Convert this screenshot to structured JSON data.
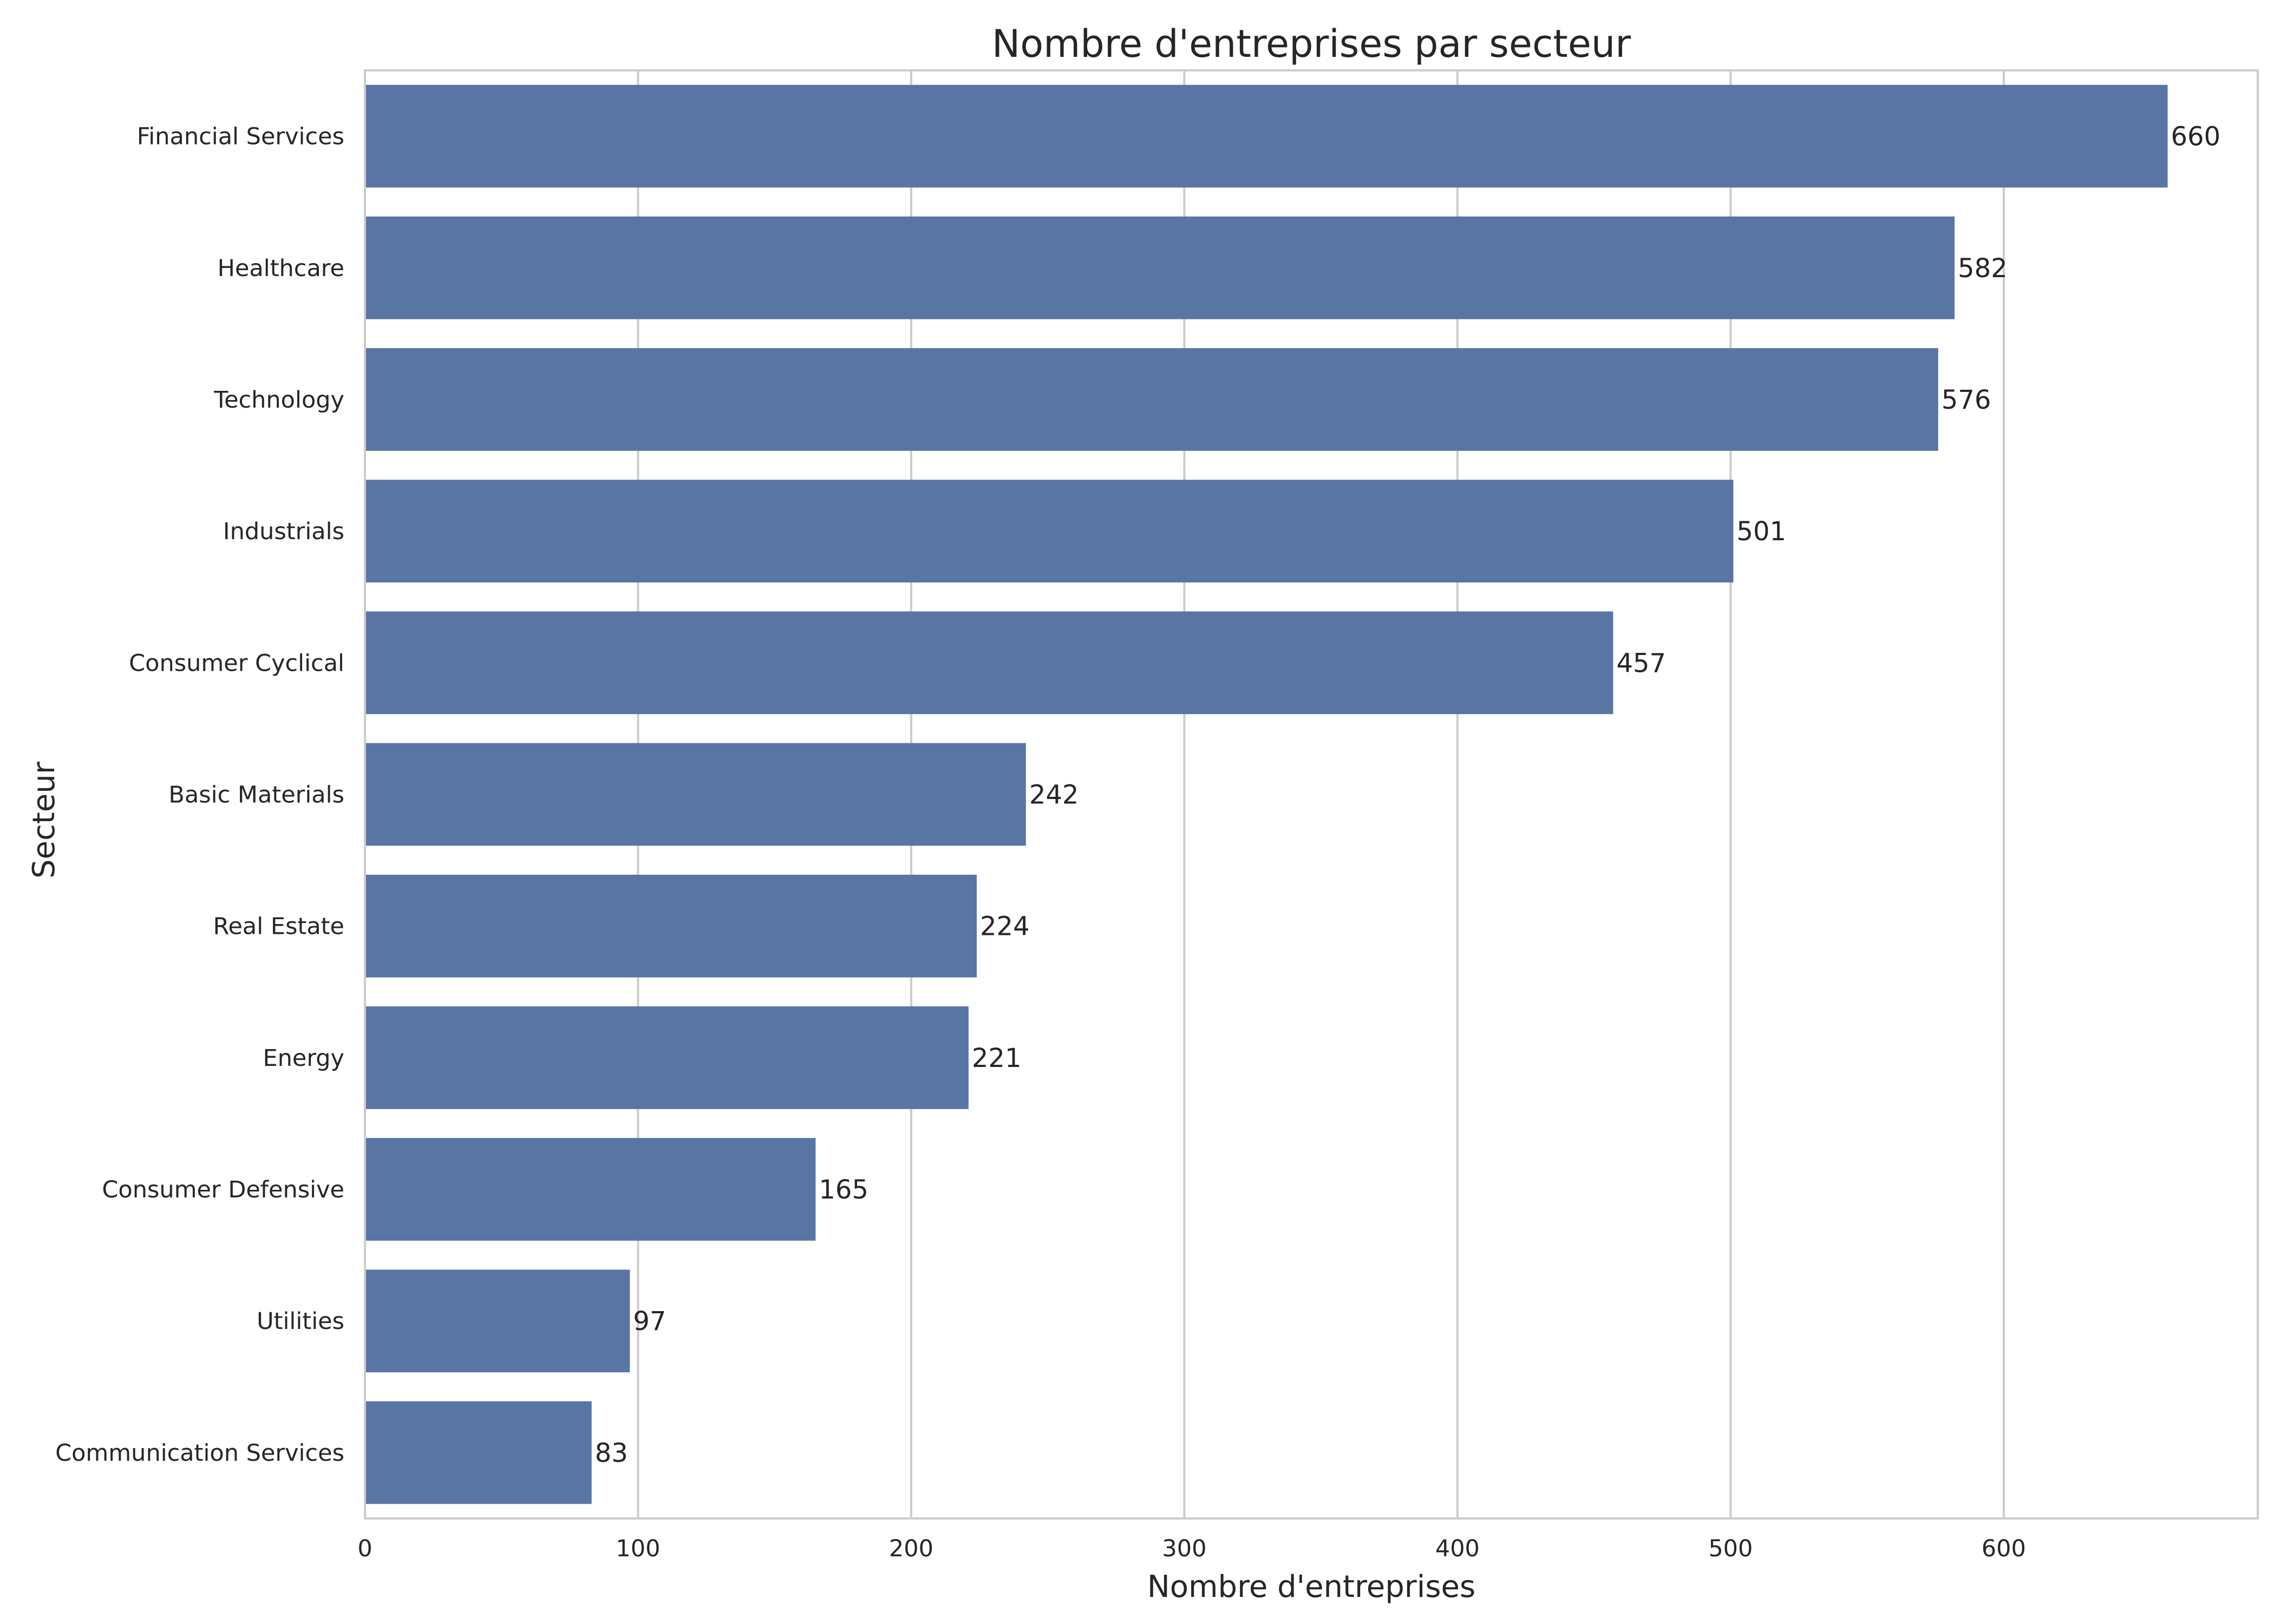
{
  "chart_data": {
    "type": "bar",
    "orientation": "horizontal",
    "title": "Nombre d'entreprises par secteur",
    "xlabel": "Nombre d'entreprises",
    "ylabel": "Secteur",
    "categories": [
      "Financial Services",
      "Healthcare",
      "Technology",
      "Industrials",
      "Consumer Cyclical",
      "Basic Materials",
      "Real Estate",
      "Energy",
      "Consumer Defensive",
      "Utilities",
      "Communication Services"
    ],
    "values": [
      660,
      582,
      576,
      501,
      457,
      242,
      224,
      221,
      165,
      97,
      83
    ],
    "data_labels": [
      "660",
      "582",
      "576",
      "501",
      "457",
      "242",
      "224",
      "221",
      "165",
      "97",
      "83"
    ],
    "xlim": [
      0,
      693
    ],
    "xticks": [
      0,
      100,
      200,
      300,
      400,
      500,
      600
    ],
    "xtick_labels": [
      "0",
      "100",
      "200",
      "300",
      "400",
      "500",
      "600"
    ],
    "grid": true,
    "bar_color": "#5975a4",
    "grid_color": "#cccccc",
    "frame_color": "#cccccc"
  }
}
